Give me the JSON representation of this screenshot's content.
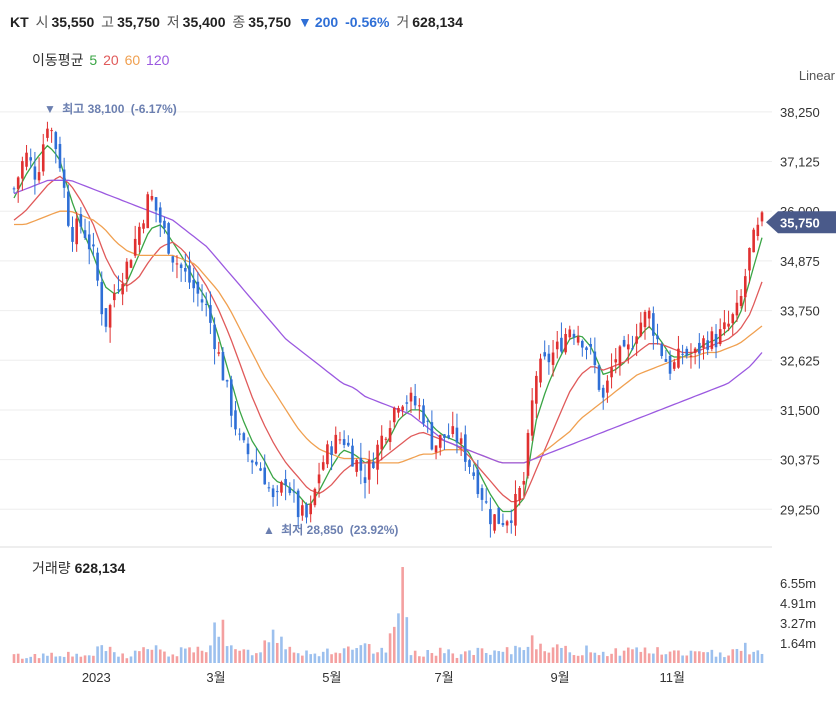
{
  "header": {
    "ticker": "KT",
    "open_label": "시",
    "open_value": "35,550",
    "high_label": "고",
    "high_value": "35,750",
    "low_label": "저",
    "low_value": "35,400",
    "close_label": "종",
    "close_value": "35,750",
    "change_arrow": "▼",
    "change_value": "200",
    "change_pct": "-0.56%",
    "volume_label": "거",
    "volume_value": "628,134"
  },
  "ma_legend": {
    "label": "이동평균",
    "periods": [
      "5",
      "20",
      "60",
      "120"
    ],
    "colors": [
      "#3aa545",
      "#e05a5a",
      "#f0a050",
      "#9b59e0"
    ]
  },
  "scale_mode": "Linear",
  "colors": {
    "up": "#e03030",
    "down": "#2f6fd6",
    "grid": "#eeeeee",
    "price_tag": "#4a5a8a",
    "annotation": "#6b7fb0"
  },
  "chart_data": {
    "type": "candlestick",
    "price_axis": {
      "ticks": [
        29250,
        30375,
        31500,
        32625,
        33750,
        34875,
        36000,
        37125,
        38250
      ],
      "ylim": [
        28600,
        38700
      ]
    },
    "x_axis_labels": [
      "2023",
      "3월",
      "5월",
      "7월",
      "9월",
      "11월"
    ],
    "current_price": {
      "label": "35,750",
      "value": 35750
    },
    "annotations": {
      "high": {
        "label": "최고",
        "value": "38,100",
        "pct": "(-6.17%)",
        "arrow": "▼"
      },
      "low": {
        "label": "최저",
        "value": "28,850",
        "pct": "(23.92%)",
        "arrow": "▲"
      }
    },
    "close_path": [
      36500,
      37300,
      36800,
      38100,
      37200,
      35500,
      35700,
      35000,
      33400,
      34300,
      34800,
      35600,
      36400,
      35700,
      35000,
      34600,
      34200,
      33800,
      32800,
      31700,
      30700,
      30400,
      30100,
      29300,
      30000,
      29200,
      29000,
      30200,
      30700,
      30900,
      30400,
      30000,
      30600,
      31200,
      31800,
      31700,
      31500,
      30700,
      30900,
      30900,
      30400,
      29800,
      29100,
      29000,
      29200,
      29900,
      32300,
      32600,
      32900,
      33400,
      33200,
      32700,
      31700,
      32700,
      32700,
      33400,
      33700,
      32900,
      32400,
      32800,
      32700,
      33100,
      33100,
      33400,
      33800,
      35200,
      35750
    ],
    "ma_series": [
      {
        "name": "5",
        "color": "#3aa545",
        "values": [
          36300,
          36800,
          37200,
          37500,
          37200,
          36300,
          35600,
          35000,
          34300,
          34100,
          34400,
          35000,
          35600,
          35700,
          35300,
          34900,
          34400,
          34000,
          33200,
          32300,
          31400,
          30800,
          30400,
          29900,
          29800,
          29600,
          29300,
          29700,
          30200,
          30600,
          30500,
          30300,
          30400,
          30800,
          31300,
          31500,
          31500,
          31100,
          30900,
          30800,
          30600,
          30100,
          29600,
          29200,
          29200,
          29500,
          31200,
          32000,
          32600,
          33100,
          33200,
          32900,
          32300,
          32400,
          32600,
          33100,
          33400,
          33100,
          32700,
          32700,
          32800,
          33000,
          33100,
          33300,
          33600,
          34500,
          35400
        ]
      },
      {
        "name": "20",
        "color": "#e05a5a",
        "values": [
          35800,
          36000,
          36300,
          36600,
          36800,
          36600,
          36200,
          35700,
          35000,
          34500,
          34300,
          34500,
          34900,
          35200,
          35300,
          35100,
          34700,
          34300,
          33800,
          33200,
          32500,
          31800,
          31200,
          30700,
          30300,
          30000,
          29700,
          29600,
          29800,
          30100,
          30300,
          30300,
          30300,
          30500,
          30700,
          30900,
          31000,
          30900,
          30800,
          30700,
          30500,
          30200,
          29900,
          29600,
          29400,
          29500,
          30100,
          30700,
          31300,
          31900,
          32300,
          32500,
          32400,
          32500,
          32600,
          32800,
          33000,
          33000,
          32900,
          32800,
          32800,
          32900,
          33000,
          33100,
          33300,
          33700,
          34400
        ]
      },
      {
        "name": "60",
        "color": "#f0a050",
        "values": [
          35700,
          35700,
          35800,
          35900,
          36000,
          36000,
          35900,
          35800,
          35600,
          35300,
          35100,
          35000,
          35000,
          35000,
          35000,
          34900,
          34800,
          34500,
          34200,
          33800,
          33300,
          32800,
          32300,
          31900,
          31500,
          31100,
          30800,
          30600,
          30500,
          30400,
          30400,
          30400,
          30300,
          30300,
          30300,
          30400,
          30500,
          30500,
          30600,
          30600,
          30600,
          30500,
          30400,
          30300,
          30300,
          30300,
          30400,
          30600,
          30800,
          31000,
          31300,
          31500,
          31700,
          31900,
          32100,
          32300,
          32400,
          32500,
          32600,
          32700,
          32700,
          32800,
          32800,
          32900,
          33000,
          33200,
          33400
        ]
      },
      {
        "name": "120",
        "color": "#9b59e0",
        "values": [
          36400,
          36500,
          36600,
          36700,
          36700,
          36700,
          36600,
          36500,
          36400,
          36300,
          36200,
          36100,
          36000,
          35900,
          35800,
          35600,
          35400,
          35200,
          34900,
          34600,
          34300,
          34000,
          33700,
          33400,
          33100,
          32900,
          32700,
          32500,
          32300,
          32100,
          32000,
          31800,
          31700,
          31600,
          31500,
          31400,
          31200,
          31000,
          30800,
          30700,
          30600,
          30500,
          30400,
          30300,
          30300,
          30300,
          30400,
          30500,
          30600,
          30700,
          30800,
          30900,
          31000,
          31100,
          31200,
          31300,
          31400,
          31500,
          31600,
          31700,
          31800,
          31900,
          32000,
          32100,
          32300,
          32500,
          32800
        ]
      }
    ],
    "volume": {
      "label": "거래량",
      "value": "628,134",
      "ticks": [
        "1.64m",
        "3.27m",
        "4.91m",
        "6.55m"
      ],
      "tick_values": [
        1.64,
        3.27,
        4.91,
        6.55
      ],
      "ymax": 8.0,
      "spikes_m": [
        0.6,
        0.5,
        0.6,
        0.7,
        0.9,
        0.6,
        0.5,
        0.8,
        1.2,
        0.7,
        0.6,
        0.9,
        1.4,
        0.8,
        0.7,
        1.0,
        0.9,
        1.5,
        3.5,
        1.1,
        0.8,
        1.0,
        1.3,
        2.8,
        1.6,
        1.0,
        0.9,
        0.8,
        1.1,
        0.9,
        1.0,
        1.2,
        0.9,
        0.8,
        7.3,
        1.0,
        0.9,
        0.8,
        0.9,
        0.7,
        0.8,
        0.9,
        0.7,
        0.8,
        1.0,
        1.5,
        2.0,
        1.4,
        1.1,
        0.9,
        0.9,
        1.2,
        0.8,
        1.0,
        0.9,
        1.3,
        1.0,
        0.9,
        0.8,
        0.9,
        0.8,
        0.7,
        0.8,
        0.9,
        1.6,
        1.1,
        0.6
      ]
    }
  }
}
